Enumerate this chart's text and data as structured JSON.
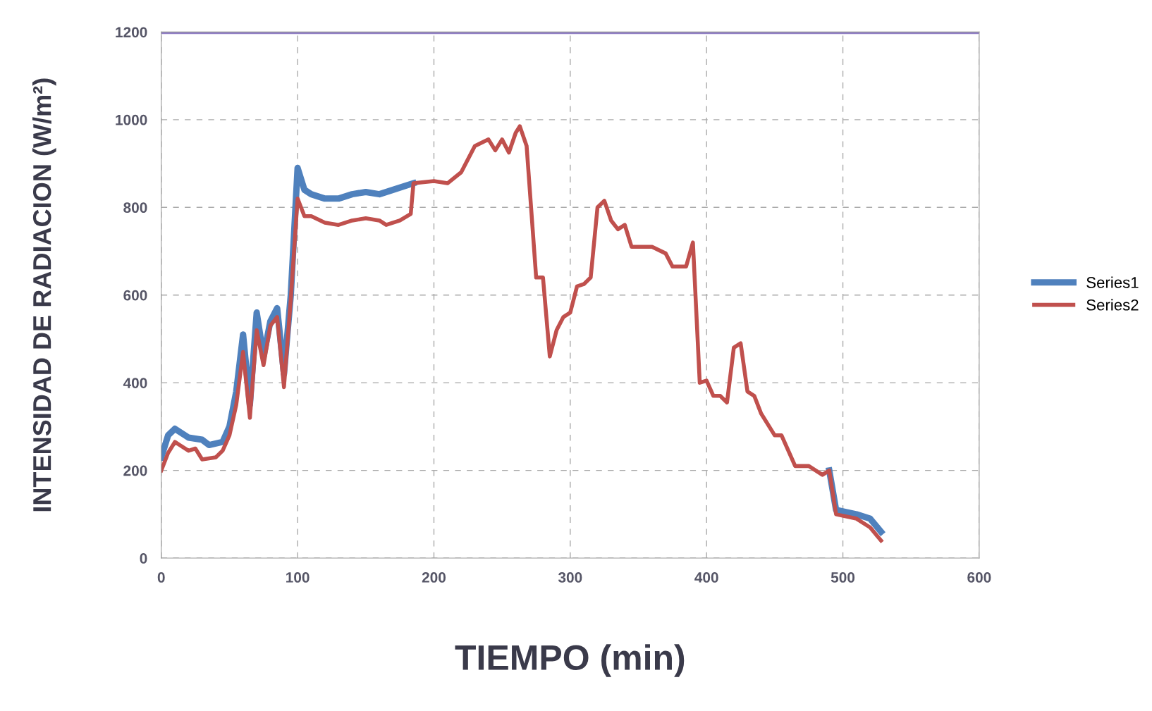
{
  "chart_data": {
    "type": "line",
    "xlabel": "TIEMPO (min)",
    "ylabel": "INTENSIDAD DE RADIACION (W/m²)",
    "xlim": [
      0,
      600
    ],
    "ylim": [
      0,
      1200
    ],
    "xticks": [
      0,
      100,
      200,
      300,
      400,
      500,
      600
    ],
    "yticks": [
      0,
      200,
      400,
      600,
      800,
      1000,
      1200
    ],
    "grid": true,
    "legend": "right",
    "line_style": "solid",
    "marker": "none",
    "ref_lines": [
      {
        "axis": "y",
        "value": 1200,
        "label": null,
        "color": "#8e7cc3"
      }
    ],
    "series": [
      {
        "name": "Series1",
        "color": "#4f81bd",
        "x": [
          0,
          5,
          10,
          15,
          20,
          30,
          35,
          45,
          50,
          55,
          60,
          65,
          70,
          75,
          80,
          85,
          90,
          95,
          100,
          105,
          110,
          120,
          130,
          140,
          150,
          160,
          170,
          185,
          200,
          210,
          220,
          230,
          240,
          245,
          250,
          255,
          260,
          263,
          268,
          275,
          280,
          285,
          290,
          295,
          300,
          305,
          310,
          315,
          320,
          325,
          330,
          335,
          340,
          345,
          350,
          360,
          370,
          375,
          385,
          390,
          395,
          400,
          405,
          410,
          415,
          420,
          425,
          430,
          435,
          440,
          450,
          455,
          465,
          475,
          480,
          485,
          490,
          495,
          510,
          520,
          528
        ],
        "values": [
          230,
          280,
          295,
          285,
          275,
          270,
          258,
          265,
          300,
          380,
          510,
          350,
          560,
          460,
          540,
          570,
          420,
          600,
          890,
          840,
          830,
          820,
          820,
          830,
          835,
          830,
          840,
          855,
          null,
          null,
          null,
          null,
          null,
          null,
          null,
          null,
          null,
          null,
          null,
          null,
          null,
          null,
          null,
          null,
          null,
          null,
          null,
          null,
          null,
          null,
          null,
          null,
          null,
          null,
          null,
          null,
          null,
          null,
          null,
          null,
          null,
          null,
          null,
          null,
          null,
          null,
          null,
          null,
          null,
          null,
          null,
          null,
          null,
          null,
          null,
          null,
          200,
          110,
          100,
          90,
          60
        ]
      },
      {
        "name": "Series2",
        "color": "#c0504d",
        "x": [
          0,
          5,
          10,
          20,
          25,
          30,
          40,
          45,
          50,
          55,
          60,
          65,
          70,
          75,
          80,
          85,
          90,
          95,
          100,
          105,
          110,
          120,
          130,
          140,
          150,
          160,
          165,
          175,
          183,
          185,
          200,
          210,
          220,
          230,
          240,
          245,
          250,
          255,
          260,
          263,
          268,
          275,
          280,
          285,
          290,
          295,
          300,
          305,
          310,
          315,
          320,
          325,
          330,
          335,
          340,
          345,
          350,
          360,
          370,
          375,
          385,
          390,
          395,
          400,
          405,
          410,
          415,
          420,
          425,
          430,
          435,
          440,
          450,
          455,
          465,
          475,
          480,
          485,
          490,
          495,
          510,
          520,
          528
        ],
        "values": [
          200,
          240,
          265,
          245,
          250,
          225,
          230,
          245,
          280,
          350,
          470,
          320,
          520,
          440,
          530,
          550,
          390,
          590,
          820,
          780,
          780,
          765,
          760,
          770,
          775,
          770,
          760,
          770,
          785,
          855,
          860,
          855,
          880,
          940,
          955,
          930,
          955,
          925,
          970,
          985,
          940,
          640,
          640,
          460,
          520,
          550,
          560,
          620,
          625,
          640,
          800,
          815,
          770,
          750,
          760,
          710,
          710,
          710,
          695,
          665,
          665,
          720,
          400,
          405,
          370,
          370,
          355,
          480,
          490,
          380,
          370,
          330,
          280,
          280,
          210,
          210,
          200,
          190,
          200,
          100,
          90,
          70,
          40
        ]
      }
    ]
  }
}
